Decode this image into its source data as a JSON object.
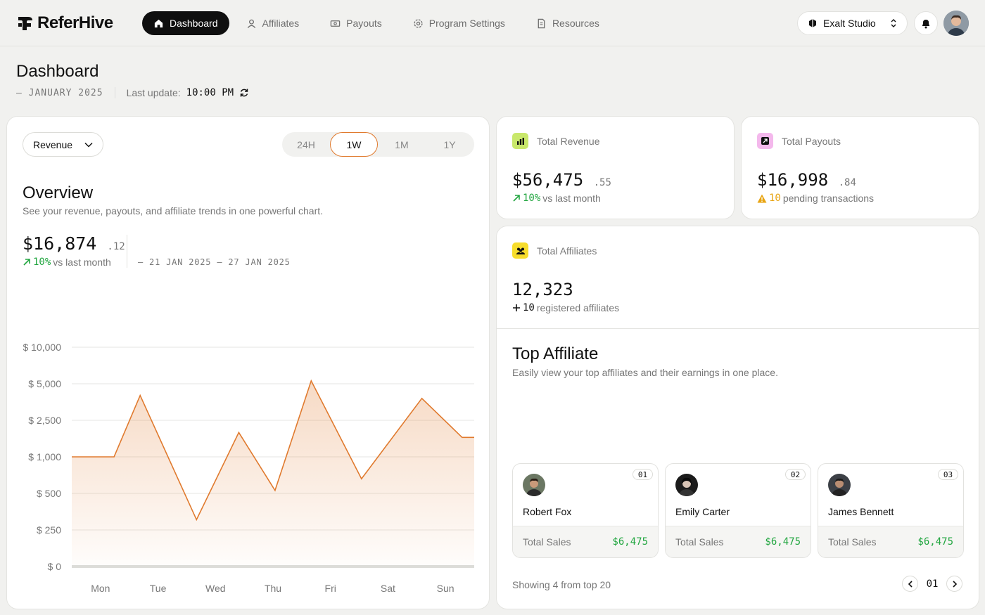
{
  "brand": {
    "name": "ReferHive"
  },
  "nav": {
    "items": [
      {
        "label": "Dashboard",
        "icon": "home-icon",
        "active": true
      },
      {
        "label": "Affiliates",
        "icon": "user-icon",
        "active": false
      },
      {
        "label": "Payouts",
        "icon": "banknote-icon",
        "active": false
      },
      {
        "label": "Program Settings",
        "icon": "gear-icon",
        "active": false
      },
      {
        "label": "Resources",
        "icon": "document-icon",
        "active": false
      }
    ]
  },
  "workspace": {
    "name": "Exalt Studio"
  },
  "header": {
    "title": "Dashboard",
    "period": "— JANUARY 2025",
    "last_update_label": "Last update:",
    "last_update_time": "10:00 PM"
  },
  "overview": {
    "metric_select": "Revenue",
    "ranges": [
      "24H",
      "1W",
      "1M",
      "1Y"
    ],
    "active_range": "1W",
    "title": "Overview",
    "subtitle": "See your revenue, payouts, and affiliate trends in one powerful chart.",
    "value": "$16,874",
    "value_cents": ".12",
    "delta": "10%",
    "delta_suffix": "vs last month",
    "date_range": "— 21 JAN 2025 — 27 JAN 2025"
  },
  "chart_data": {
    "type": "area",
    "x": [
      "Mon",
      "Tue",
      "Wed",
      "Thu",
      "Fri",
      "Sat",
      "Sun"
    ],
    "ytick_labels": [
      "$ 0",
      "$ 250",
      "$ 500",
      "$ 1,000",
      "$ 2,500",
      "$ 5,000",
      "$ 10,000"
    ],
    "ytick_values": [
      0,
      250,
      500,
      1000,
      2500,
      5000,
      10000
    ],
    "points": [
      {
        "x": "Mon",
        "y": 1000
      },
      {
        "x": "Mon–Tue",
        "y": 1000
      },
      {
        "x": "Tue",
        "y": 4200
      },
      {
        "x": "Tue–Wed",
        "y": 320
      },
      {
        "x": "Thu",
        "y": 2000
      },
      {
        "x": "Thu",
        "y": 540
      },
      {
        "x": "Fri",
        "y": 5400
      },
      {
        "x": "Sat",
        "y": 700
      },
      {
        "x": "Sat–Sun",
        "y": 4000
      },
      {
        "x": "Sun",
        "y": 1800
      }
    ],
    "y_scale": "categorical-steps",
    "grid": true,
    "color": "#e07a2e"
  },
  "kpis": {
    "revenue": {
      "label": "Total Revenue",
      "value": "$56,475",
      "cents": ".55",
      "delta": "10%",
      "delta_suffix": "vs last month",
      "icon": "bar-chart-icon",
      "icon_bg": "#c9e86b"
    },
    "payouts": {
      "label": "Total Payouts",
      "value": "$16,998",
      "cents": ".84",
      "pending_count": "10",
      "pending_suffix": "pending transactions",
      "icon": "arrow-out-icon",
      "icon_bg": "#f4b8ec"
    },
    "affiliates": {
      "label": "Total Affiliates",
      "value": "12,323",
      "added": "10",
      "added_suffix": "registered affiliates",
      "icon": "people-icon",
      "icon_bg": "#f7dd2c"
    }
  },
  "top_affiliate": {
    "title": "Top Affiliate",
    "subtitle": "Easily view your top affiliates and their earnings in one place.",
    "cards": [
      {
        "rank": "01",
        "name": "Robert Fox",
        "sales_label": "Total Sales",
        "sales": "$6,475"
      },
      {
        "rank": "02",
        "name": "Emily Carter",
        "sales_label": "Total Sales",
        "sales": "$6,475"
      },
      {
        "rank": "03",
        "name": "James Bennett",
        "sales_label": "Total Sales",
        "sales": "$6,475"
      }
    ],
    "showing": "Showing 4 from top 20",
    "page": "01"
  }
}
